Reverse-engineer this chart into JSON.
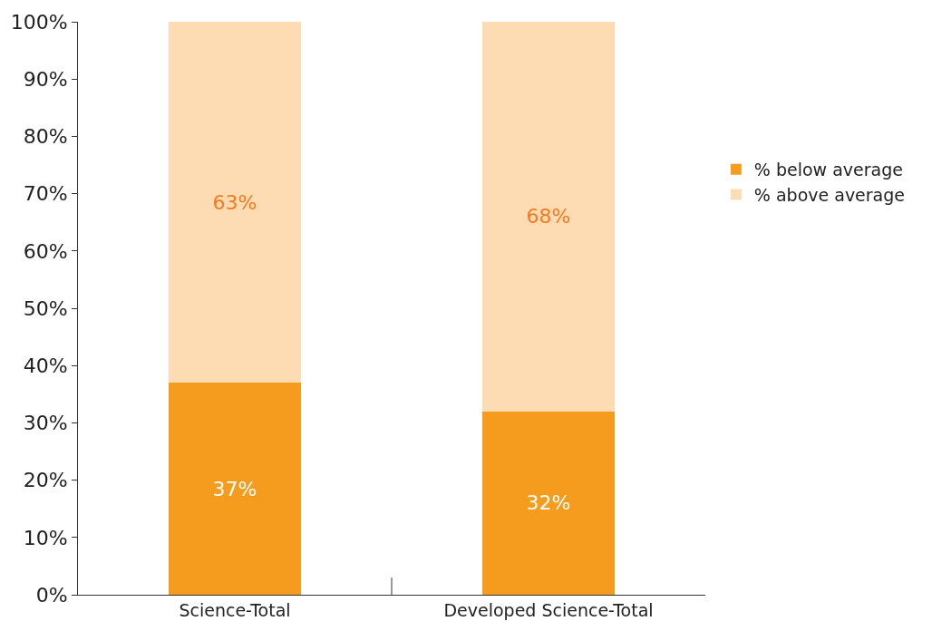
{
  "chart_data": {
    "type": "bar",
    "stacked": true,
    "categories": [
      "Science-Total",
      "Developed Science-Total"
    ],
    "series": [
      {
        "name": "% below average",
        "color": "#f59c1e",
        "values": [
          37,
          32
        ],
        "value_labels": [
          "37%",
          "32%"
        ]
      },
      {
        "name": "% above average",
        "color": "#fddcb3",
        "values": [
          63,
          68
        ],
        "value_labels": [
          "63%",
          "68%"
        ]
      }
    ],
    "ylim": [
      0,
      100
    ],
    "yticks": [
      {
        "value": 0,
        "label": "0%"
      },
      {
        "value": 10,
        "label": "10%"
      },
      {
        "value": 20,
        "label": "20%"
      },
      {
        "value": 30,
        "label": "30%"
      },
      {
        "value": 40,
        "label": "40%"
      },
      {
        "value": 50,
        "label": "50%"
      },
      {
        "value": 60,
        "label": "60%"
      },
      {
        "value": 70,
        "label": "70%"
      },
      {
        "value": 80,
        "label": "80%"
      },
      {
        "value": 90,
        "label": "90%"
      },
      {
        "value": 100,
        "label": "100%"
      }
    ],
    "legend": "right"
  }
}
